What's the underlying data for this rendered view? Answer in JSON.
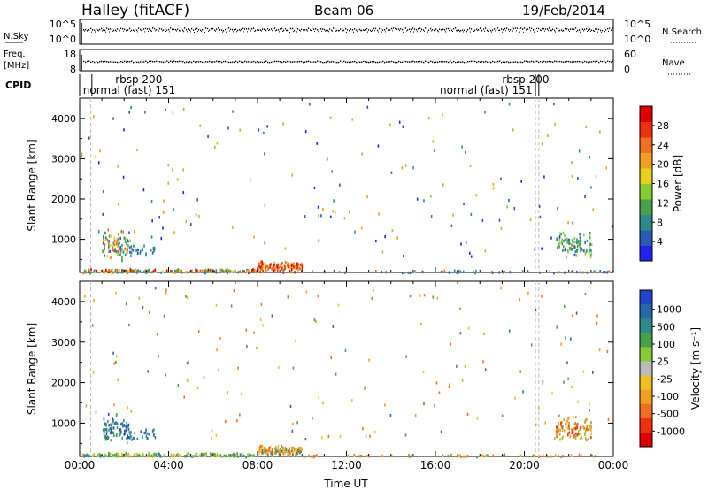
{
  "header": {
    "title": "Halley (fitACF)",
    "beam": "Beam 06",
    "date": "19/Feb/2014"
  },
  "strips": {
    "nsky_label": "N.Sky",
    "nsky_ticks": [
      "10^5",
      "10^0"
    ],
    "nsearch_label": "N.Search",
    "nsearch_ticks": [
      "10^5",
      "10^0"
    ],
    "freq_label_1": "Freq.",
    "freq_label_2": "[MHz]",
    "freq_ticks": [
      "18",
      "8"
    ],
    "nave_label": "Nave",
    "nave_ticks": [
      "60",
      "0"
    ],
    "cpid_label": "CPID",
    "cpid_entries": [
      {
        "label": "rbsp 200",
        "row": 0,
        "x_hour": 1.6
      },
      {
        "label": "normal (fast) 151",
        "row": 1,
        "x_hour": 0.15
      },
      {
        "label": "rbsp 200",
        "row": 0,
        "x_hour": 19.0
      },
      {
        "label": "normal (fast) 151",
        "row": 1,
        "x_hour": 16.2
      }
    ]
  },
  "chart_data": [
    {
      "type": "heatmap",
      "name": "power-panel",
      "ylabel": "Slant Range [km]",
      "xlim": [
        0,
        24
      ],
      "ylim": [
        180,
        4500
      ],
      "yticks": [
        "1000",
        "2000",
        "3000",
        "4000"
      ],
      "colorbar": {
        "label": "Power [dB]",
        "ticks": [
          "4",
          "8",
          "12",
          "16",
          "20",
          "24",
          "28"
        ],
        "colors": [
          "#2222ee",
          "#2a5ab8",
          "#2d8a8a",
          "#4aa04a",
          "#88cc33",
          "#e8d020",
          "#f0a020",
          "#f07020",
          "#ee3010",
          "#dd0000"
        ]
      },
      "vlines_hours": [
        0.5,
        20.5,
        20.65
      ],
      "clusters": [
        {
          "t": [
            1.0,
            2.2
          ],
          "r": [
            500,
            1300
          ],
          "n": 90,
          "colors": [
            "#2d8a8a",
            "#4aa04a",
            "#e8d020",
            "#f07020",
            "#2a5ab8"
          ]
        },
        {
          "t": [
            2.2,
            3.4
          ],
          "r": [
            600,
            900
          ],
          "n": 25,
          "colors": [
            "#2d8a8a",
            "#2a5ab8"
          ]
        },
        {
          "t": [
            0.1,
            8.0
          ],
          "r": [
            190,
            300
          ],
          "n": 160,
          "colors": [
            "#dd0000",
            "#f07020",
            "#4aa04a",
            "#2d8a8a",
            "#e8d020"
          ]
        },
        {
          "t": [
            8.0,
            10.0
          ],
          "r": [
            190,
            500
          ],
          "n": 120,
          "colors": [
            "#dd0000",
            "#ee3010",
            "#f07020",
            "#f0a020"
          ]
        },
        {
          "t": [
            10.0,
            24.0
          ],
          "r": [
            190,
            260
          ],
          "n": 60,
          "colors": [
            "#f07020",
            "#2d8a8a",
            "#2a5ab8"
          ]
        },
        {
          "t": [
            21.4,
            23.0
          ],
          "r": [
            550,
            1250
          ],
          "n": 100,
          "colors": [
            "#2a5ab8",
            "#2d8a8a",
            "#4aa04a",
            "#88cc33"
          ]
        },
        {
          "t": [
            0.0,
            24.0
          ],
          "r": [
            600,
            4400
          ],
          "n": 170,
          "colors": [
            "#2a5ab8",
            "#2222ee",
            "#2d8a8a",
            "#88cc33",
            "#f0a020"
          ]
        }
      ]
    },
    {
      "type": "heatmap",
      "name": "velocity-panel",
      "ylabel": "Slant Range [km]",
      "xlabel": "Time UT",
      "xlim": [
        0,
        24
      ],
      "ylim": [
        180,
        4500
      ],
      "yticks": [
        "1000",
        "2000",
        "3000",
        "4000"
      ],
      "xticks": [
        "00:00",
        "04:00",
        "08:00",
        "12:00",
        "16:00",
        "20:00",
        "00:00"
      ],
      "colorbar": {
        "label": "Velocity [m s⁻¹]",
        "ticks": [
          "1000",
          "500",
          "100",
          "25",
          "-25",
          "-100",
          "-500",
          "-1000"
        ],
        "colors": [
          "#2244cc",
          "#2a66aa",
          "#2d8a8a",
          "#4aa04a",
          "#88cc33",
          "#bbbbbb",
          "#f0c020",
          "#f0a020",
          "#f07020",
          "#ee3010",
          "#dd0000"
        ]
      },
      "vlines_hours": [
        0.5,
        20.5,
        20.65
      ],
      "clusters": [
        {
          "t": [
            1.0,
            2.2
          ],
          "r": [
            500,
            1300
          ],
          "n": 90,
          "colors": [
            "#2a66aa",
            "#2d8a8a",
            "#2244cc",
            "#4aa04a"
          ]
        },
        {
          "t": [
            2.2,
            3.4
          ],
          "r": [
            600,
            900
          ],
          "n": 25,
          "colors": [
            "#2d8a8a",
            "#2a66aa"
          ]
        },
        {
          "t": [
            0.1,
            8.0
          ],
          "r": [
            190,
            300
          ],
          "n": 160,
          "colors": [
            "#4aa04a",
            "#88cc33",
            "#2d8a8a",
            "#f0c020"
          ]
        },
        {
          "t": [
            8.0,
            10.0
          ],
          "r": [
            190,
            500
          ],
          "n": 120,
          "colors": [
            "#f0a020",
            "#f07020",
            "#f0c020",
            "#2d8a8a"
          ]
        },
        {
          "t": [
            10.0,
            24.0
          ],
          "r": [
            190,
            260
          ],
          "n": 60,
          "colors": [
            "#f0a020",
            "#4aa04a",
            "#f07020"
          ]
        },
        {
          "t": [
            21.4,
            23.0
          ],
          "r": [
            550,
            1250
          ],
          "n": 100,
          "colors": [
            "#f07020",
            "#f0a020",
            "#88cc33",
            "#ee3010"
          ]
        },
        {
          "t": [
            0.0,
            24.0
          ],
          "r": [
            600,
            4400
          ],
          "n": 170,
          "colors": [
            "#f0a020",
            "#f0c020",
            "#2a66aa",
            "#4aa04a",
            "#f07020"
          ]
        }
      ]
    }
  ]
}
